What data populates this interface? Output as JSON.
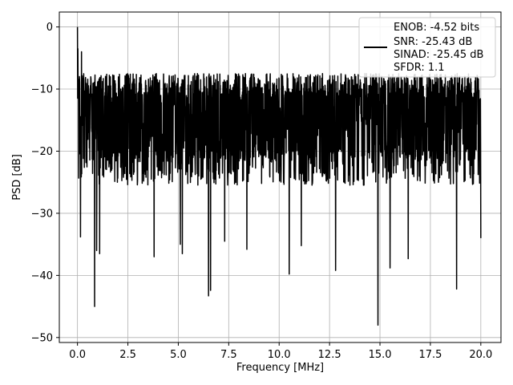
{
  "chart_data": {
    "type": "line",
    "xlabel": "Frequency [MHz]",
    "ylabel": "PSD [dB]",
    "xlim": [
      -0.9,
      21.0
    ],
    "ylim": [
      -50.8,
      2.4
    ],
    "xticks": [
      0.0,
      2.5,
      5.0,
      7.5,
      10.0,
      12.5,
      15.0,
      17.5,
      20.0
    ],
    "xtick_labels": [
      "0.0",
      "2.5",
      "5.0",
      "7.5",
      "10.0",
      "12.5",
      "15.0",
      "17.5",
      "20.0"
    ],
    "yticks": [
      0,
      -10,
      -20,
      -30,
      -40,
      -50
    ],
    "ytick_labels": [
      "0",
      "−10",
      "−20",
      "−30",
      "−40",
      "−50"
    ],
    "grid": true,
    "legend": {
      "placement": "top-right",
      "lines": [
        "ENOB: -4.52 bits",
        "SNR: -25.43 dB",
        "SINAD: -25.45 dB",
        "SFDR: 1.1"
      ]
    },
    "series": [
      {
        "color": "#000000",
        "x_range": [
          0.0,
          20.0
        ],
        "baseline_db": -14.5,
        "spread_db": [
          -7.5,
          -25.5
        ],
        "peaks": [
          {
            "x": 0.0,
            "y": 0.0
          },
          {
            "x": 0.02,
            "y": -3.5
          },
          {
            "x": 0.1,
            "y": -8.0
          },
          {
            "x": 0.2,
            "y": -4.0
          }
        ],
        "dips": [
          {
            "x": 0.15,
            "y": -33.8
          },
          {
            "x": 0.85,
            "y": -45.0
          },
          {
            "x": 0.95,
            "y": -36.0
          },
          {
            "x": 1.1,
            "y": -36.5
          },
          {
            "x": 3.8,
            "y": -37.0
          },
          {
            "x": 5.1,
            "y": -35.0
          },
          {
            "x": 5.2,
            "y": -36.5
          },
          {
            "x": 6.5,
            "y": -43.3
          },
          {
            "x": 6.6,
            "y": -42.4
          },
          {
            "x": 7.3,
            "y": -34.5
          },
          {
            "x": 8.4,
            "y": -35.8
          },
          {
            "x": 10.5,
            "y": -39.8
          },
          {
            "x": 11.1,
            "y": -35.2
          },
          {
            "x": 12.8,
            "y": -39.2
          },
          {
            "x": 14.9,
            "y": -48.0
          },
          {
            "x": 15.5,
            "y": -38.8
          },
          {
            "x": 16.4,
            "y": -37.3
          },
          {
            "x": 18.8,
            "y": -42.2
          },
          {
            "x": 20.0,
            "y": -34.0
          }
        ]
      }
    ]
  }
}
